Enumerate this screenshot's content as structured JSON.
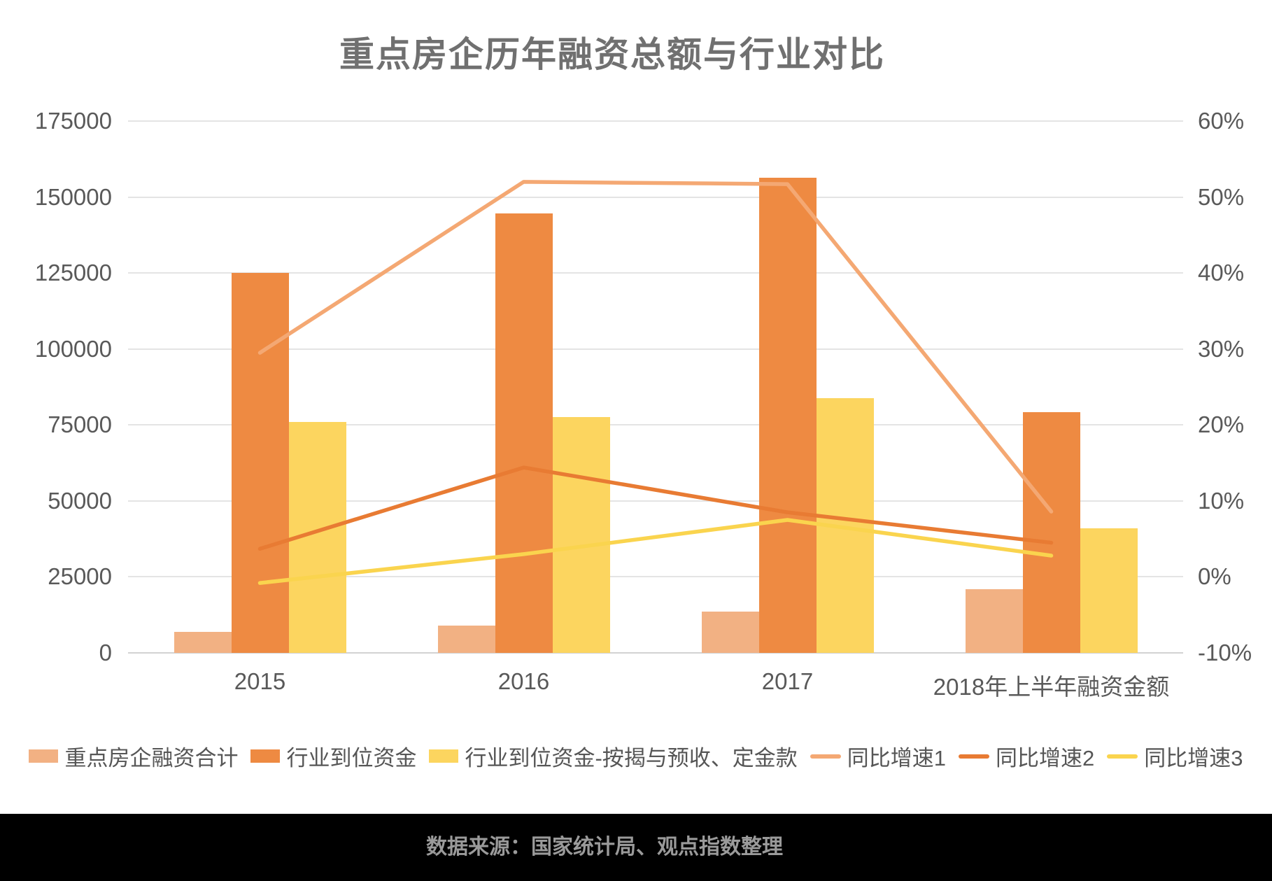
{
  "title": "重点房企历年融资总额与行业对比",
  "footer": {
    "source_text": "数据来源：国家统计局、观点指数整理"
  },
  "colors": {
    "background": "#ffffff",
    "title_text": "#707070",
    "axis_text": "#595959",
    "gridline": "#e4e4e4",
    "axis_baseline": "#d2d2d2",
    "footer_background": "#000000",
    "footer_text": "#9a9a9a"
  },
  "chart_data": {
    "type": "combo-bar-line",
    "title": "重点房企历年融资总额与行业对比",
    "categories": [
      "2015",
      "2016",
      "2017",
      "2018年上半年融资金额"
    ],
    "bar_series": [
      {
        "name": "重点房企融资合计",
        "color": "#f2b183",
        "axis": "left",
        "values": [
          7000,
          9000,
          13700,
          21000
        ]
      },
      {
        "name": "行业到位资金",
        "color": "#ee8a42",
        "axis": "left",
        "values": [
          125000,
          144500,
          156300,
          79300
        ]
      },
      {
        "name": "行业到位资金-按揭与预收、定金款",
        "color": "#fcd55f",
        "axis": "left",
        "values": [
          76000,
          77500,
          83800,
          41000
        ]
      }
    ],
    "line_series": [
      {
        "name": "同比增速1",
        "color": "#f4a873",
        "axis": "right",
        "values": [
          29.5,
          52,
          51.7,
          8.6
        ]
      },
      {
        "name": "同比增速2",
        "color": "#e87b33",
        "axis": "right",
        "values": [
          3.7,
          14.4,
          8.5,
          4.5
        ]
      },
      {
        "name": "同比增速3",
        "color": "#fad44e",
        "axis": "right",
        "values": [
          -0.8,
          3,
          7.5,
          2.8
        ]
      }
    ],
    "left_axis": {
      "min": 0,
      "max": 175000,
      "tick_step": 25000,
      "ticks": [
        "175000",
        "150000",
        "125000",
        "100000",
        "75000",
        "50000",
        "25000",
        "0"
      ]
    },
    "right_axis": {
      "min": -10,
      "max": 60,
      "tick_step": 10,
      "ticks": [
        "60%",
        "50%",
        "40%",
        "30%",
        "20%",
        "10%",
        "0%",
        "-10%"
      ]
    },
    "grid": true,
    "legend_position": "bottom"
  }
}
